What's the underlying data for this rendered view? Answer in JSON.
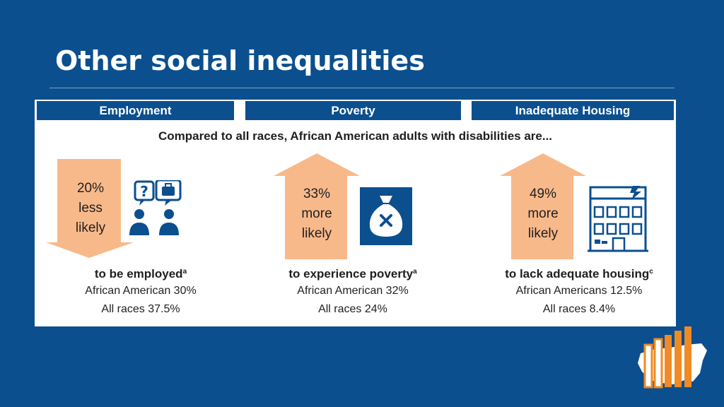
{
  "title": "Other social inequalities",
  "tabs": [
    "Employment",
    "Poverty",
    "Inadequate Housing"
  ],
  "intro": "Compared to all races, African American adults with disabilities are...",
  "columns": [
    {
      "arrow_direction": "down",
      "arrow_line1": "20%",
      "arrow_line2": "less",
      "arrow_line3": "likely",
      "icon": "job-interview-icon",
      "lead": "to be employed",
      "footnote": "a",
      "line2": "African American 30%",
      "line3": "All races 37.5%"
    },
    {
      "arrow_direction": "up",
      "arrow_line1": "33%",
      "arrow_line2": "more",
      "arrow_line3": "likely",
      "icon": "money-bag-x-icon",
      "lead": "to experience poverty",
      "footnote": "a",
      "line2": "African American 32%",
      "line3": "All races 24%"
    },
    {
      "arrow_direction": "up",
      "arrow_line1": "49%",
      "arrow_line2": "more",
      "arrow_line3": "likely",
      "icon": "damaged-house-icon",
      "lead": "to lack adequate housing",
      "footnote": "c",
      "line2": "African Americans 12.5%",
      "line3": "All races 8.4%"
    }
  ],
  "colors": {
    "background": "#0b4f8f",
    "arrow": "#f8b98a",
    "icon_blue": "#0b4f8f",
    "logo_orange": "#f08a24"
  }
}
